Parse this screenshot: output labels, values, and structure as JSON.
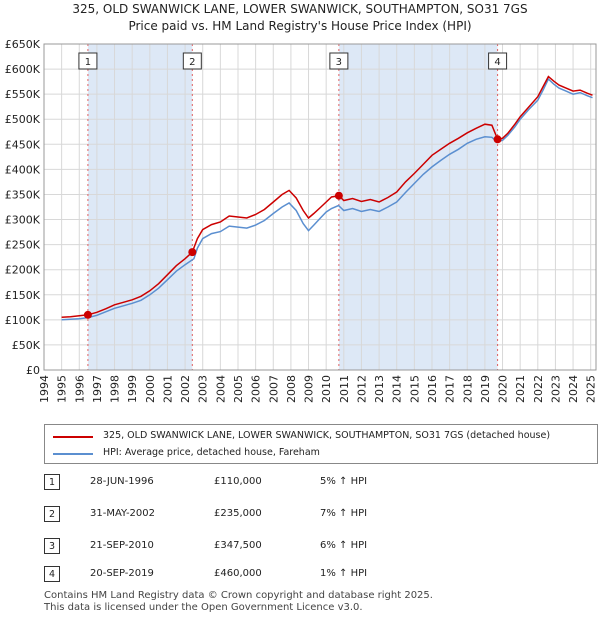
{
  "title_line1": "325, OLD SWANWICK LANE, LOWER SWANWICK, SOUTHAMPTON, SO31 7GS",
  "title_line2": "Price paid vs. HM Land Registry's House Price Index (HPI)",
  "colors": {
    "property": "#cc0000",
    "hpi": "#5b8fd0",
    "shade": "#dde8f6",
    "grid": "#d8d8d8",
    "marker_line": "#e06060"
  },
  "chart_data": {
    "type": "line",
    "title": "325, OLD SWANWICK LANE, LOWER SWANWICK, SOUTHAMPTON, SO31 7GS",
    "subtitle": "Price paid vs. HM Land Registry's House Price Index (HPI)",
    "x_range": [
      1994,
      2025.3
    ],
    "ylim": [
      0,
      650000
    ],
    "y_ticks": [
      0,
      50000,
      100000,
      150000,
      200000,
      250000,
      300000,
      350000,
      400000,
      450000,
      500000,
      550000,
      600000,
      650000
    ],
    "y_tick_labels": [
      "£0",
      "£50K",
      "£100K",
      "£150K",
      "£200K",
      "£250K",
      "£300K",
      "£350K",
      "£400K",
      "£450K",
      "£500K",
      "£550K",
      "£600K",
      "£650K"
    ],
    "x_ticks": [
      1994,
      1995,
      1996,
      1997,
      1998,
      1999,
      2000,
      2001,
      2002,
      2003,
      2004,
      2005,
      2006,
      2007,
      2008,
      2009,
      2010,
      2011,
      2012,
      2013,
      2014,
      2015,
      2016,
      2017,
      2018,
      2019,
      2020,
      2021,
      2022,
      2023,
      2024,
      2025
    ],
    "shaded_periods": [
      [
        1996.49,
        2002.41
      ],
      [
        2010.72,
        2019.72
      ]
    ],
    "series": [
      {
        "name": "325, OLD SWANWICK LANE, LOWER SWANWICK, SOUTHAMPTON, SO31 7GS (detached house)",
        "x": [
          1995.0,
          1995.5,
          1996.0,
          1996.49,
          1997.0,
          1997.5,
          1998.0,
          1998.5,
          1999.0,
          1999.5,
          2000.0,
          2000.5,
          2001.0,
          2001.5,
          2002.0,
          2002.41,
          2002.7,
          2003.0,
          2003.5,
          2004.0,
          2004.5,
          2005.0,
          2005.5,
          2006.0,
          2006.5,
          2007.0,
          2007.5,
          2007.9,
          2008.3,
          2008.7,
          2009.0,
          2009.3,
          2009.7,
          2010.0,
          2010.3,
          2010.72,
          2011.0,
          2011.5,
          2012.0,
          2012.5,
          2013.0,
          2013.5,
          2014.0,
          2014.5,
          2015.0,
          2015.5,
          2016.0,
          2016.5,
          2017.0,
          2017.5,
          2018.0,
          2018.5,
          2019.0,
          2019.4,
          2019.72,
          2020.0,
          2020.3,
          2020.7,
          2021.0,
          2021.5,
          2022.0,
          2022.3,
          2022.6,
          2022.9,
          2023.2,
          2023.6,
          2024.0,
          2024.4,
          2024.8,
          2025.1
        ],
        "values": [
          105000,
          106000,
          108000,
          110000,
          115000,
          122000,
          130000,
          135000,
          140000,
          147000,
          158000,
          172000,
          190000,
          208000,
          222000,
          235000,
          262000,
          280000,
          290000,
          295000,
          307000,
          305000,
          303000,
          310000,
          320000,
          335000,
          350000,
          358000,
          343000,
          318000,
          303000,
          312000,
          325000,
          335000,
          345000,
          347500,
          338000,
          342000,
          336000,
          340000,
          335000,
          344000,
          355000,
          375000,
          392000,
          410000,
          428000,
          440000,
          452000,
          462000,
          473000,
          482000,
          490000,
          488000,
          460000,
          462000,
          472000,
          490000,
          505000,
          525000,
          545000,
          565000,
          585000,
          576000,
          568000,
          562000,
          556000,
          558000,
          552000,
          548000
        ]
      },
      {
        "name": "HPI: Average price, detached house, Fareham",
        "x": [
          1995.0,
          1995.5,
          1996.0,
          1996.5,
          1997.0,
          1997.5,
          1998.0,
          1998.5,
          1999.0,
          1999.5,
          2000.0,
          2000.5,
          2001.0,
          2001.5,
          2002.0,
          2002.5,
          2002.7,
          2003.0,
          2003.5,
          2004.0,
          2004.5,
          2005.0,
          2005.5,
          2006.0,
          2006.5,
          2007.0,
          2007.5,
          2007.9,
          2008.3,
          2008.7,
          2009.0,
          2009.3,
          2009.7,
          2010.0,
          2010.3,
          2010.7,
          2011.0,
          2011.5,
          2012.0,
          2012.5,
          2013.0,
          2013.5,
          2014.0,
          2014.5,
          2015.0,
          2015.5,
          2016.0,
          2016.5,
          2017.0,
          2017.5,
          2018.0,
          2018.5,
          2019.0,
          2019.4,
          2019.7,
          2020.0,
          2020.3,
          2020.7,
          2021.0,
          2021.5,
          2022.0,
          2022.3,
          2022.6,
          2022.9,
          2023.2,
          2023.6,
          2024.0,
          2024.4,
          2024.8,
          2025.1
        ],
        "values": [
          100000,
          101000,
          102000,
          104500,
          109000,
          116000,
          123000,
          128000,
          133000,
          139000,
          150000,
          163000,
          180000,
          197000,
          210000,
          222000,
          243000,
          262000,
          272000,
          276000,
          287000,
          285000,
          283000,
          289000,
          298000,
          312000,
          325000,
          333000,
          318000,
          292000,
          278000,
          289000,
          304000,
          315000,
          322000,
          328000,
          318000,
          322000,
          316000,
          320000,
          316000,
          325000,
          335000,
          354000,
          372000,
          390000,
          405000,
          418000,
          430000,
          440000,
          452000,
          460000,
          465000,
          464000,
          455000,
          458000,
          468000,
          485000,
          500000,
          520000,
          538000,
          558000,
          580000,
          570000,
          562000,
          556000,
          550000,
          553000,
          547000,
          543000
        ]
      }
    ],
    "sale_markers": [
      {
        "label": "1",
        "x": 1996.49,
        "value": 110000
      },
      {
        "label": "2",
        "x": 2002.41,
        "value": 235000
      },
      {
        "label": "3",
        "x": 2010.72,
        "value": 347500
      },
      {
        "label": "4",
        "x": 2019.72,
        "value": 460000
      }
    ]
  },
  "legend": {
    "property": "325, OLD SWANWICK LANE, LOWER SWANWICK, SOUTHAMPTON, SO31 7GS (detached house)",
    "hpi": "HPI: Average price, detached house, Fareham"
  },
  "sales": [
    {
      "num": "1",
      "date": "28-JUN-1996",
      "price": "£110,000",
      "hpi": "5% ↑ HPI"
    },
    {
      "num": "2",
      "date": "31-MAY-2002",
      "price": "£235,000",
      "hpi": "7% ↑ HPI"
    },
    {
      "num": "3",
      "date": "21-SEP-2010",
      "price": "£347,500",
      "hpi": "6% ↑ HPI"
    },
    {
      "num": "4",
      "date": "20-SEP-2019",
      "price": "£460,000",
      "hpi": "1% ↑ HPI"
    }
  ],
  "footer_line1": "Contains HM Land Registry data © Crown copyright and database right 2025.",
  "footer_line2": "This data is licensed under the Open Government Licence v3.0."
}
